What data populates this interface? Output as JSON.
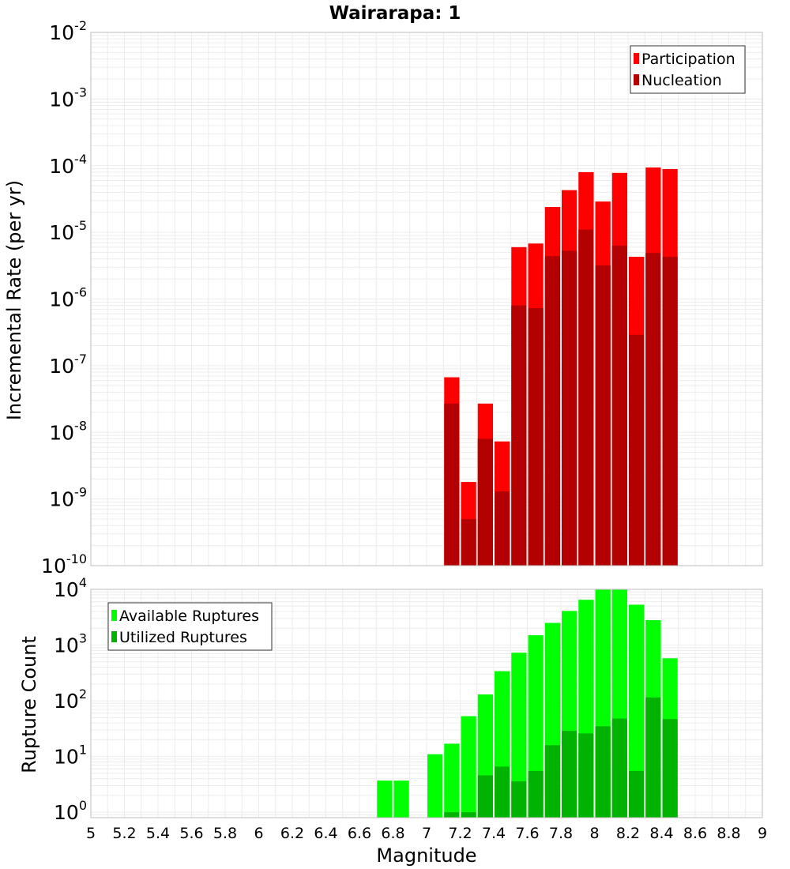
{
  "title": "Wairarapa: 1",
  "xlabel": "Magnitude",
  "colors": {
    "participation": "#ff0000",
    "nucleation": "#b30000",
    "available": "#00ff00",
    "utilized": "#00b300",
    "grid": "#ececec",
    "frame": "#bdbdbd"
  },
  "x_ticks": [
    "5",
    "5.2",
    "5.4",
    "5.6",
    "5.8",
    "6",
    "6.2",
    "6.4",
    "6.6",
    "6.8",
    "7",
    "7.2",
    "7.4",
    "7.6",
    "7.8",
    "8",
    "8.2",
    "8.4",
    "8.6",
    "8.8",
    "9"
  ],
  "chart_data": [
    {
      "type": "bar",
      "ylabel": "Incremental Rate (per yr)",
      "yscale": "log",
      "ylim": [
        1e-10,
        0.01
      ],
      "xlim": [
        5,
        9
      ],
      "grid": true,
      "legend_position": "top-right",
      "x": [
        7.15,
        7.25,
        7.35,
        7.45,
        7.55,
        7.65,
        7.75,
        7.85,
        7.95,
        8.05,
        8.15,
        8.25,
        8.35,
        8.45
      ],
      "series": [
        {
          "name": "Participation",
          "values": [
            6.7e-08,
            1.8e-09,
            2.7e-08,
            7.3e-09,
            6e-06,
            6.8e-06,
            2.4e-05,
            4.3e-05,
            8e-05,
            2.9e-05,
            7.8e-05,
            4.3e-06,
            9.4e-05,
            8.9e-05
          ]
        },
        {
          "name": "Nucleation",
          "values": [
            2.7e-08,
            5e-10,
            8e-09,
            1.3e-09,
            8e-07,
            7.3e-07,
            4.4e-06,
            5.3e-06,
            1.1e-05,
            3.2e-06,
            6.3e-06,
            2.9e-07,
            4.9e-06,
            4.3e-06
          ]
        }
      ],
      "y_ticks": [
        {
          "base": "10",
          "exp": "-10"
        },
        {
          "base": "10",
          "exp": "-9"
        },
        {
          "base": "10",
          "exp": "-8"
        },
        {
          "base": "10",
          "exp": "-7"
        },
        {
          "base": "10",
          "exp": "-6"
        },
        {
          "base": "10",
          "exp": "-5"
        },
        {
          "base": "10",
          "exp": "-4"
        },
        {
          "base": "10",
          "exp": "-3"
        },
        {
          "base": "10",
          "exp": "-2"
        }
      ]
    },
    {
      "type": "bar",
      "ylabel": "Rupture Count",
      "yscale": "log",
      "ylim": [
        0.8,
        10000
      ],
      "xlim": [
        5,
        9
      ],
      "grid": true,
      "legend_position": "top-left",
      "x": [
        6.75,
        6.85,
        7.05,
        7.15,
        7.25,
        7.35,
        7.45,
        7.55,
        7.65,
        7.75,
        7.85,
        7.95,
        8.05,
        8.15,
        8.25,
        8.35,
        8.45
      ],
      "series": [
        {
          "name": "Available Ruptures",
          "values": [
            3.7,
            3.7,
            11,
            17,
            53,
            130,
            340,
            730,
            1500,
            2500,
            4100,
            6500,
            10000,
            10000,
            5300,
            2800,
            580
          ]
        },
        {
          "name": "Utilized Ruptures",
          "values": [
            null,
            null,
            null,
            1,
            1,
            4.6,
            6.6,
            3.6,
            5.5,
            16,
            29,
            26,
            35,
            48,
            5.5,
            115,
            47
          ]
        }
      ],
      "y_ticks": [
        {
          "base": "10",
          "exp": "0"
        },
        {
          "base": "10",
          "exp": "1"
        },
        {
          "base": "10",
          "exp": "2"
        },
        {
          "base": "10",
          "exp": "3"
        },
        {
          "base": "10",
          "exp": "4"
        }
      ]
    }
  ]
}
